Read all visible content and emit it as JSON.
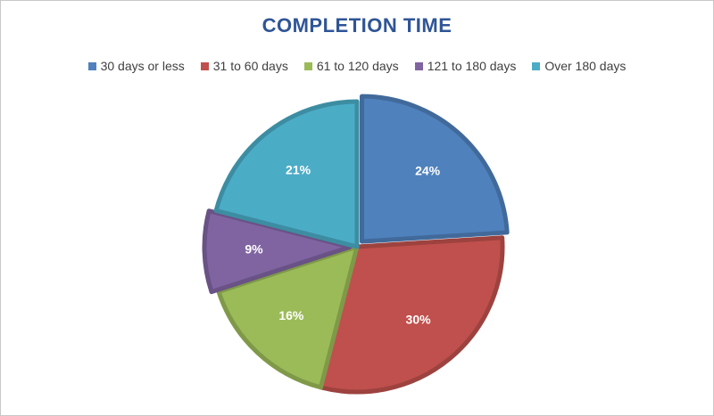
{
  "chart_data": {
    "type": "pie",
    "title": "COMPLETION TIME",
    "legend_position": "top",
    "categories": [
      "30 days or less",
      "31 to 60 days",
      "61 to 120 days",
      "121 to 180 days",
      "Over 180 days"
    ],
    "values": [
      24,
      30,
      16,
      9,
      21
    ],
    "labels": [
      "24%",
      "30%",
      "16%",
      "9%",
      "21%"
    ],
    "colors": [
      "#4f81bd",
      "#c0504d",
      "#9bbb59",
      "#8064a2",
      "#4bacc6"
    ],
    "explode": [
      true,
      false,
      false,
      true,
      false
    ]
  }
}
